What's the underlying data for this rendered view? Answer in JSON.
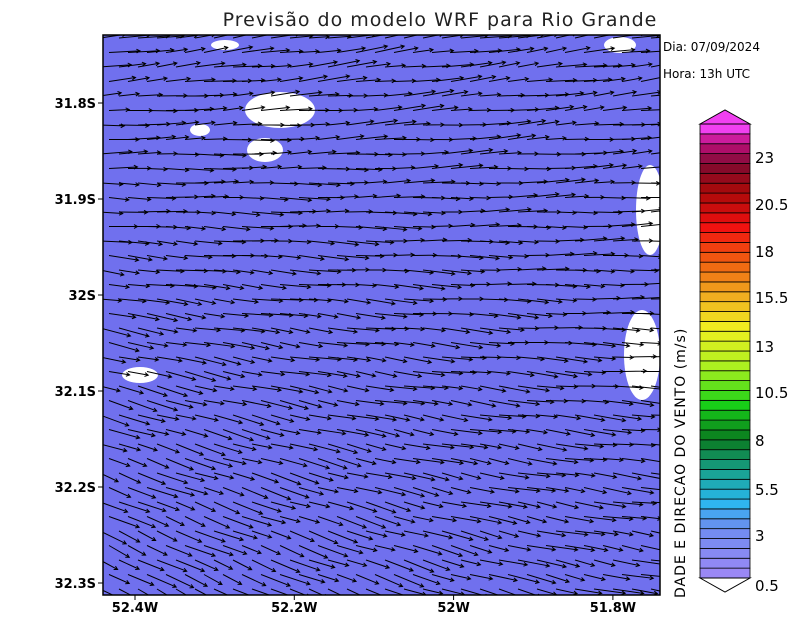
{
  "title": "Previsão do modelo WRF para Rio Grande",
  "date": "Dia: 07/09/2024",
  "hour": "Hora: 13h UTC",
  "y_axis": {
    "ticks": [
      "31.8S",
      "31.9S",
      "32S",
      "32.1S",
      "32.2S",
      "32.3S"
    ]
  },
  "x_axis": {
    "ticks": [
      "52.4W",
      "52.2W",
      "52W",
      "51.8W"
    ]
  },
  "colorbar": {
    "label": "DADE E DIRECAO DO VENTO (m/s)",
    "ticks": [
      "23",
      "20.5",
      "18",
      "15.5",
      "13",
      "10.5",
      "8",
      "5.5",
      "3",
      "0.5"
    ]
  }
}
